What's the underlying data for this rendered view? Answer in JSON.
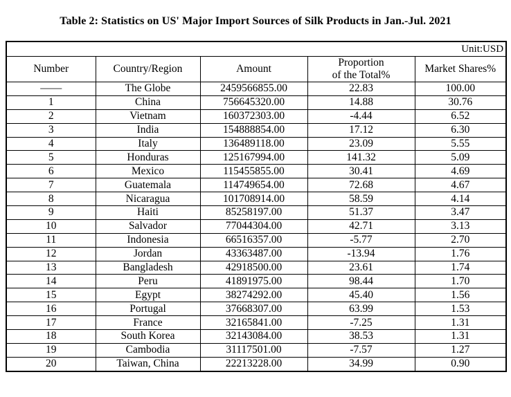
{
  "page": {
    "title": "Table 2: Statistics on US' Major Import Sources of Silk Products in Jan.-Jul. 2021"
  },
  "colors": {
    "border": "#000000",
    "background": "#ffffff",
    "text": "#000000"
  },
  "table": {
    "unit_label": "Unit:USD",
    "columns": [
      {
        "label": "Number"
      },
      {
        "label": "Country/Region"
      },
      {
        "label": "Amount"
      },
      {
        "label": "Proportion",
        "label_line2": "of the Total%"
      },
      {
        "label": "Market Shares%"
      }
    ],
    "rows": [
      [
        "——",
        "The Globe",
        "2459566855.00",
        "22.83",
        "100.00"
      ],
      [
        "1",
        "China",
        "756645320.00",
        "14.88",
        "30.76"
      ],
      [
        "2",
        "Vietnam",
        "160372303.00",
        "-4.44",
        "6.52"
      ],
      [
        "3",
        "India",
        "154888854.00",
        "17.12",
        "6.30"
      ],
      [
        "4",
        "Italy",
        "136489118.00",
        "23.09",
        "5.55"
      ],
      [
        "5",
        "Honduras",
        "125167994.00",
        "141.32",
        "5.09"
      ],
      [
        "6",
        "Mexico",
        "115455855.00",
        "30.41",
        "4.69"
      ],
      [
        "7",
        "Guatemala",
        "114749654.00",
        "72.68",
        "4.67"
      ],
      [
        "8",
        "Nicaragua",
        "101708914.00",
        "58.59",
        "4.14"
      ],
      [
        "9",
        "Haiti",
        "85258197.00",
        "51.37",
        "3.47"
      ],
      [
        "10",
        "Salvador",
        "77044304.00",
        "42.71",
        "3.13"
      ],
      [
        "11",
        "Indonesia",
        "66516357.00",
        "-5.77",
        "2.70"
      ],
      [
        "12",
        "Jordan",
        "43363487.00",
        "-13.94",
        "1.76"
      ],
      [
        "13",
        "Bangladesh",
        "42918500.00",
        "23.61",
        "1.74"
      ],
      [
        "14",
        "Peru",
        "41891975.00",
        "98.44",
        "1.70"
      ],
      [
        "15",
        "Egypt",
        "38274292.00",
        "45.40",
        "1.56"
      ],
      [
        "16",
        "Portugal",
        "37668307.00",
        "63.99",
        "1.53"
      ],
      [
        "17",
        "France",
        "32165841.00",
        "-7.25",
        "1.31"
      ],
      [
        "18",
        "South Korea",
        "32143084.00",
        "38.53",
        "1.31"
      ],
      [
        "19",
        "Cambodia",
        "31117501.00",
        "-7.57",
        "1.27"
      ],
      [
        "20",
        "Taiwan, China",
        "22213228.00",
        "34.99",
        "0.90"
      ]
    ]
  }
}
